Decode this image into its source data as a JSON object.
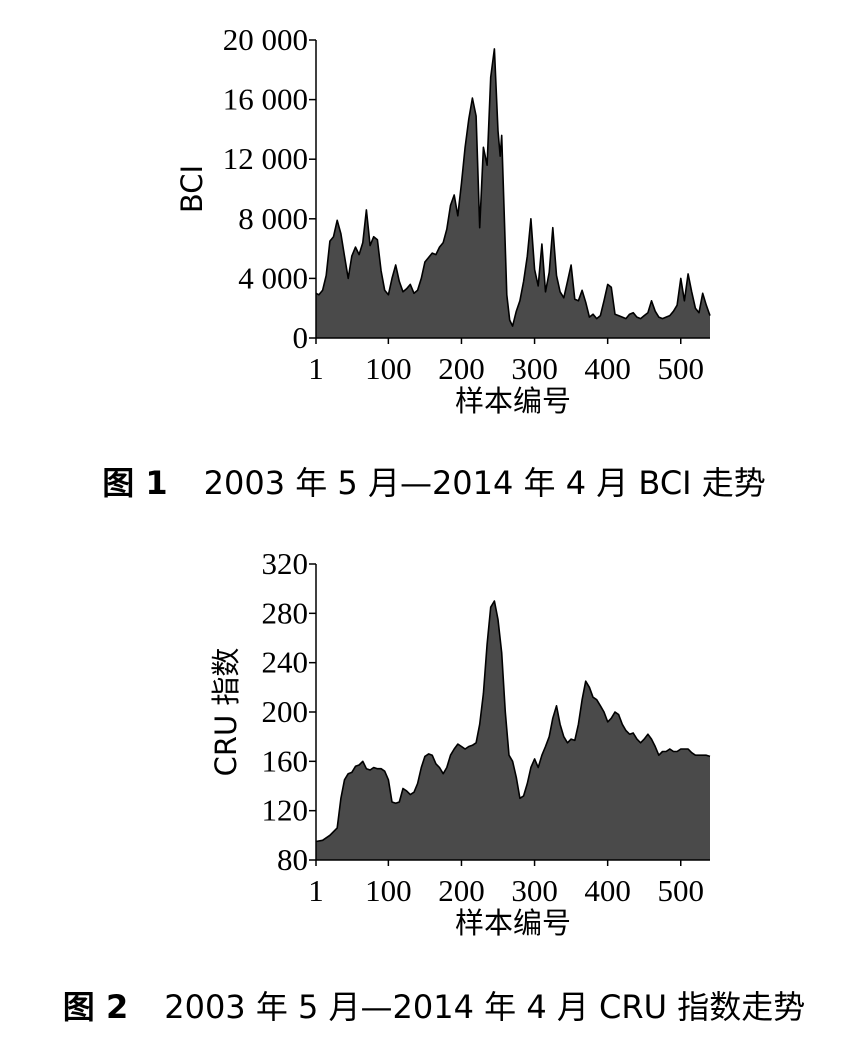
{
  "figures": [
    {
      "caption_label": "图 1",
      "caption_text": "2003 年 5 月—2014 年 4 月 BCI 走势"
    },
    {
      "caption_label": "图 2",
      "caption_text": "2003 年 5 月—2014 年 4 月 CRU 指数走势"
    }
  ],
  "colors": {
    "fill": "#4a4a4a",
    "stroke": "#000000",
    "background": "#ffffff"
  },
  "chart_data": [
    {
      "type": "area",
      "title": "",
      "xlabel": "样本编号",
      "ylabel": "BCI",
      "xlim": [
        1,
        540
      ],
      "ylim": [
        0,
        20000
      ],
      "xticks": [
        1,
        100,
        200,
        300,
        400,
        500
      ],
      "xtick_labels": [
        "1",
        "100",
        "200",
        "300",
        "400",
        "500"
      ],
      "yticks": [
        0,
        4000,
        8000,
        12000,
        16000,
        20000
      ],
      "ytick_labels": [
        "0",
        "4 000",
        "8 000",
        "12 000",
        "16 000",
        "20 000"
      ],
      "grid": false,
      "legend": "none",
      "series": [
        {
          "x": [
            1,
            5,
            10,
            15,
            20,
            25,
            30,
            35,
            40,
            45,
            50,
            55,
            60,
            65,
            70,
            75,
            80,
            85,
            90,
            95,
            100,
            105,
            110,
            115,
            120,
            125,
            130,
            135,
            140,
            145,
            150,
            155,
            160,
            165,
            170,
            175,
            180,
            185,
            190,
            195,
            200,
            205,
            210,
            215,
            220,
            225,
            230,
            235,
            240,
            245,
            250,
            253,
            255,
            258,
            262,
            266,
            270,
            275,
            280,
            285,
            290,
            295,
            300,
            305,
            310,
            315,
            320,
            325,
            330,
            335,
            340,
            345,
            350,
            355,
            360,
            365,
            370,
            375,
            380,
            385,
            390,
            395,
            400,
            405,
            410,
            415,
            420,
            425,
            430,
            435,
            440,
            445,
            450,
            455,
            460,
            465,
            470,
            475,
            480,
            485,
            490,
            495,
            500,
            505,
            510,
            515,
            520,
            525,
            530,
            535,
            540
          ],
          "values": [
            3000,
            2900,
            3200,
            4200,
            6500,
            6800,
            7900,
            7000,
            5500,
            4000,
            5500,
            6100,
            5600,
            6400,
            8600,
            6200,
            6800,
            6600,
            4500,
            3200,
            2900,
            4000,
            4900,
            3800,
            3100,
            3300,
            3600,
            3000,
            3200,
            4000,
            5100,
            5400,
            5700,
            5600,
            6100,
            6400,
            7300,
            8900,
            9600,
            8200,
            10400,
            12800,
            14700,
            16100,
            14900,
            7400,
            12800,
            11600,
            17500,
            19400,
            13900,
            12200,
            13600,
            9000,
            2900,
            1200,
            800,
            1800,
            2500,
            3800,
            5500,
            8000,
            4600,
            3500,
            6300,
            3100,
            4400,
            7400,
            4200,
            3100,
            2700,
            3800,
            4900,
            2600,
            2500,
            3200,
            2400,
            1400,
            1600,
            1300,
            1500,
            2500,
            3600,
            3400,
            1600,
            1500,
            1400,
            1300,
            1600,
            1700,
            1400,
            1300,
            1500,
            1700,
            2500,
            1800,
            1400,
            1300,
            1400,
            1500,
            1800,
            2200,
            4000,
            2500,
            4300,
            3100,
            2000,
            1700,
            3000,
            2200,
            1500
          ]
        }
      ]
    },
    {
      "type": "area",
      "title": "",
      "xlabel": "样本编号",
      "ylabel": "CRU 指数",
      "xlim": [
        1,
        540
      ],
      "ylim": [
        80,
        320
      ],
      "xticks": [
        1,
        100,
        200,
        300,
        400,
        500
      ],
      "xtick_labels": [
        "1",
        "100",
        "200",
        "300",
        "400",
        "500"
      ],
      "yticks": [
        80,
        120,
        160,
        200,
        240,
        280,
        320
      ],
      "ytick_labels": [
        "80",
        "120",
        "160",
        "200",
        "240",
        "280",
        "320"
      ],
      "grid": false,
      "legend": "none",
      "series": [
        {
          "x": [
            1,
            10,
            20,
            30,
            35,
            40,
            45,
            50,
            55,
            60,
            65,
            70,
            75,
            80,
            85,
            90,
            95,
            100,
            105,
            110,
            115,
            120,
            125,
            130,
            135,
            140,
            145,
            150,
            155,
            160,
            165,
            170,
            175,
            180,
            185,
            190,
            195,
            200,
            205,
            210,
            215,
            220,
            225,
            230,
            235,
            240,
            245,
            250,
            255,
            260,
            265,
            270,
            275,
            280,
            285,
            290,
            295,
            300,
            305,
            310,
            315,
            320,
            325,
            330,
            335,
            340,
            345,
            350,
            355,
            360,
            365,
            370,
            375,
            380,
            385,
            390,
            395,
            400,
            405,
            410,
            415,
            420,
            425,
            430,
            435,
            440,
            445,
            450,
            455,
            460,
            465,
            470,
            475,
            480,
            485,
            490,
            495,
            500,
            505,
            510,
            515,
            520,
            525,
            530,
            535,
            540
          ],
          "values": [
            95,
            96,
            100,
            106,
            130,
            145,
            150,
            151,
            156,
            157,
            160,
            154,
            153,
            155,
            154,
            154,
            152,
            145,
            127,
            126,
            127,
            138,
            136,
            133,
            135,
            142,
            155,
            164,
            166,
            165,
            158,
            155,
            150,
            155,
            165,
            170,
            174,
            172,
            170,
            172,
            173,
            175,
            190,
            215,
            255,
            285,
            290,
            275,
            248,
            200,
            165,
            160,
            147,
            130,
            132,
            142,
            155,
            162,
            155,
            165,
            172,
            180,
            195,
            205,
            190,
            180,
            175,
            178,
            177,
            190,
            210,
            225,
            220,
            212,
            210,
            205,
            200,
            192,
            195,
            200,
            198,
            190,
            185,
            182,
            183,
            178,
            175,
            178,
            182,
            178,
            172,
            165,
            168,
            168,
            170,
            168,
            168,
            170,
            170,
            170,
            167,
            165,
            165,
            165,
            165,
            164
          ]
        }
      ]
    }
  ]
}
